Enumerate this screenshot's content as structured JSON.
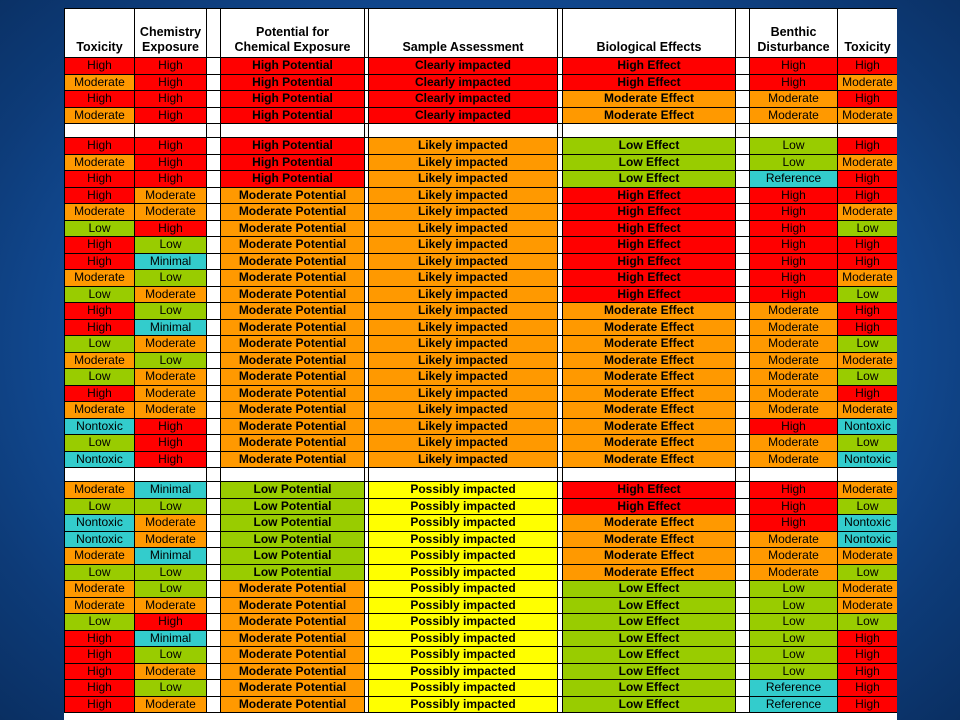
{
  "columns": [
    "Toxicity",
    "Chemistry Exposure",
    "Potential for Chemical Exposure",
    "Sample Assessment",
    "Biological Effects",
    "Benthic Disturbance",
    "Toxicity"
  ],
  "header": {
    "c1": [
      "",
      "Toxicity"
    ],
    "c2": [
      "Chemistry",
      "Exposure"
    ],
    "c3": [
      "Potential for",
      "Chemical Exposure"
    ],
    "c4": [
      "",
      "Sample Assessment"
    ],
    "c5": [
      "",
      "Biological Effects"
    ],
    "c6": [
      "Benthic",
      "Disturbance"
    ],
    "c7": [
      "",
      "Toxicity"
    ]
  },
  "colors": {
    "High": "#ff0000",
    "Moderate": "#ff9900",
    "Possibly": "#ffff00",
    "Low": "#99cc00",
    "Minimal/Nontoxic/Reference": "#33cccc"
  },
  "groups": [
    [
      [
        "High",
        "High",
        "High Potential",
        "Clearly impacted",
        "High Effect",
        "High",
        "High"
      ],
      [
        "Moderate",
        "High",
        "High Potential",
        "Clearly impacted",
        "High Effect",
        "High",
        "Moderate"
      ],
      [
        "High",
        "High",
        "High Potential",
        "Clearly impacted",
        "Moderate Effect",
        "Moderate",
        "High"
      ],
      [
        "Moderate",
        "High",
        "High Potential",
        "Clearly impacted",
        "Moderate Effect",
        "Moderate",
        "Moderate"
      ]
    ],
    [
      [
        "High",
        "High",
        "High Potential",
        "Likely impacted",
        "Low Effect",
        "Low",
        "High"
      ],
      [
        "Moderate",
        "High",
        "High Potential",
        "Likely impacted",
        "Low Effect",
        "Low",
        "Moderate"
      ],
      [
        "High",
        "High",
        "High Potential",
        "Likely impacted",
        "Low Effect",
        "Reference",
        "High"
      ],
      [
        "High",
        "Moderate",
        "Moderate Potential",
        "Likely impacted",
        "High Effect",
        "High",
        "High"
      ],
      [
        "Moderate",
        "Moderate",
        "Moderate Potential",
        "Likely impacted",
        "High Effect",
        "High",
        "Moderate"
      ],
      [
        "Low",
        "High",
        "Moderate Potential",
        "Likely impacted",
        "High Effect",
        "High",
        "Low"
      ],
      [
        "High",
        "Low",
        "Moderate Potential",
        "Likely impacted",
        "High Effect",
        "High",
        "High"
      ],
      [
        "High",
        "Minimal",
        "Moderate Potential",
        "Likely impacted",
        "High Effect",
        "High",
        "High"
      ],
      [
        "Moderate",
        "Low",
        "Moderate Potential",
        "Likely impacted",
        "High Effect",
        "High",
        "Moderate"
      ],
      [
        "Low",
        "Moderate",
        "Moderate Potential",
        "Likely impacted",
        "High Effect",
        "High",
        "Low"
      ],
      [
        "High",
        "Low",
        "Moderate Potential",
        "Likely impacted",
        "Moderate Effect",
        "Moderate",
        "High"
      ],
      [
        "High",
        "Minimal",
        "Moderate Potential",
        "Likely impacted",
        "Moderate Effect",
        "Moderate",
        "High"
      ],
      [
        "Low",
        "Moderate",
        "Moderate Potential",
        "Likely impacted",
        "Moderate Effect",
        "Moderate",
        "Low"
      ],
      [
        "Moderate",
        "Low",
        "Moderate Potential",
        "Likely impacted",
        "Moderate Effect",
        "Moderate",
        "Moderate"
      ],
      [
        "Low",
        "Moderate",
        "Moderate Potential",
        "Likely impacted",
        "Moderate Effect",
        "Moderate",
        "Low"
      ],
      [
        "High",
        "Moderate",
        "Moderate Potential",
        "Likely impacted",
        "Moderate Effect",
        "Moderate",
        "High"
      ],
      [
        "Moderate",
        "Moderate",
        "Moderate Potential",
        "Likely impacted",
        "Moderate Effect",
        "Moderate",
        "Moderate"
      ],
      [
        "Nontoxic",
        "High",
        "Moderate Potential",
        "Likely impacted",
        "Moderate Effect",
        "High",
        "Nontoxic"
      ],
      [
        "Low",
        "High",
        "Moderate Potential",
        "Likely impacted",
        "Moderate Effect",
        "Moderate",
        "Low"
      ],
      [
        "Nontoxic",
        "High",
        "Moderate Potential",
        "Likely impacted",
        "Moderate Effect",
        "Moderate",
        "Nontoxic"
      ]
    ],
    [
      [
        "Moderate",
        "Minimal",
        "Low Potential",
        "Possibly impacted",
        "High Effect",
        "High",
        "Moderate"
      ],
      [
        "Low",
        "Low",
        "Low Potential",
        "Possibly impacted",
        "High Effect",
        "High",
        "Low"
      ],
      [
        "Nontoxic",
        "Moderate",
        "Low Potential",
        "Possibly impacted",
        "Moderate Effect",
        "High",
        "Nontoxic"
      ],
      [
        "Nontoxic",
        "Moderate",
        "Low Potential",
        "Possibly impacted",
        "Moderate Effect",
        "Moderate",
        "Nontoxic"
      ],
      [
        "Moderate",
        "Minimal",
        "Low Potential",
        "Possibly impacted",
        "Moderate Effect",
        "Moderate",
        "Moderate"
      ],
      [
        "Low",
        "Low",
        "Low Potential",
        "Possibly impacted",
        "Moderate Effect",
        "Moderate",
        "Low"
      ],
      [
        "Moderate",
        "Low",
        "Moderate Potential",
        "Possibly impacted",
        "Low Effect",
        "Low",
        "Moderate"
      ],
      [
        "Moderate",
        "Moderate",
        "Moderate Potential",
        "Possibly impacted",
        "Low Effect",
        "Low",
        "Moderate"
      ],
      [
        "Low",
        "High",
        "Moderate Potential",
        "Possibly impacted",
        "Low Effect",
        "Low",
        "Low"
      ],
      [
        "High",
        "Minimal",
        "Moderate Potential",
        "Possibly impacted",
        "Low Effect",
        "Low",
        "High"
      ],
      [
        "High",
        "Low",
        "Moderate Potential",
        "Possibly impacted",
        "Low Effect",
        "Low",
        "High"
      ],
      [
        "High",
        "Moderate",
        "Moderate Potential",
        "Possibly impacted",
        "Low Effect",
        "Low",
        "High"
      ],
      [
        "High",
        "Low",
        "Moderate Potential",
        "Possibly impacted",
        "Low Effect",
        "Reference",
        "High"
      ],
      [
        "High",
        "Moderate",
        "Moderate Potential",
        "Possibly impacted",
        "Low Effect",
        "Reference",
        "High"
      ]
    ]
  ]
}
